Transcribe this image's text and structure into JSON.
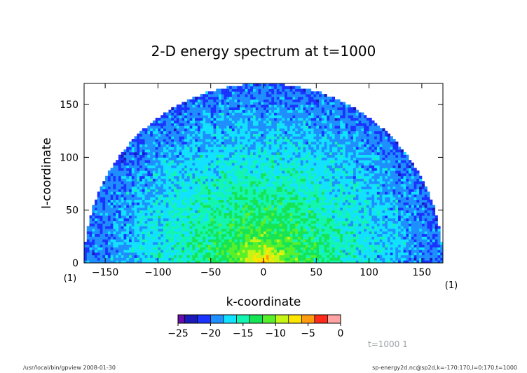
{
  "chart_data": {
    "type": "heatmap",
    "title": "2-D energy spectrum at t=1000",
    "xlabel": "k-coordinate",
    "ylabel": "l-coordinate",
    "xlim": [
      -170,
      170
    ],
    "ylim": [
      0,
      170
    ],
    "x_ticks": [
      -150,
      -100,
      -50,
      0,
      50,
      100,
      150
    ],
    "x_tick_labels": [
      "−150",
      "−100",
      "−50",
      "0",
      "50",
      "100",
      "150"
    ],
    "y_ticks": [
      0,
      50,
      100,
      150
    ],
    "y_tick_labels": [
      "0",
      "50",
      "100",
      "150"
    ],
    "x_unit_label": "(1)",
    "x_right_unit_label": "(1)",
    "domain_shape": "half-disk k^2 + l^2 <= 170^2, l >= 0",
    "colorbar": {
      "levels": [
        -25,
        -24,
        -22,
        -20,
        -18,
        -16,
        -14,
        -12,
        -10,
        -8,
        -6,
        -4,
        -2,
        0
      ],
      "tick_values": [
        -25,
        -20,
        -15,
        -10,
        -5,
        0
      ],
      "tick_labels": [
        "−25",
        "−20",
        "−15",
        "−10",
        "−5",
        "0"
      ],
      "colors": [
        "#6a0dad",
        "#1a1ab8",
        "#1b33ff",
        "#1f8fff",
        "#12e2ff",
        "#13f5b0",
        "#17e455",
        "#58f02a",
        "#c5f517",
        "#ffe600",
        "#ff9b10",
        "#ff2a1a",
        "#ffa3a3"
      ]
    },
    "value_trend": {
      "rings": [
        {
          "radius": 0,
          "value": -5
        },
        {
          "radius": 8,
          "value": -8
        },
        {
          "radius": 20,
          "value": -11
        },
        {
          "radius": 45,
          "value": -13.5
        },
        {
          "radius": 80,
          "value": -15.5
        },
        {
          "radius": 120,
          "value": -17.5
        },
        {
          "radius": 150,
          "value": -19
        },
        {
          "radius": 170,
          "value": -20
        }
      ]
    },
    "annotation": "t=1000  1"
  },
  "footer": {
    "left": "/usr/local/bin/gpview  2008-01-30",
    "right": "sp-energy2d.nc@sp2d,k=-170:170,l=0:170,t=1000"
  }
}
